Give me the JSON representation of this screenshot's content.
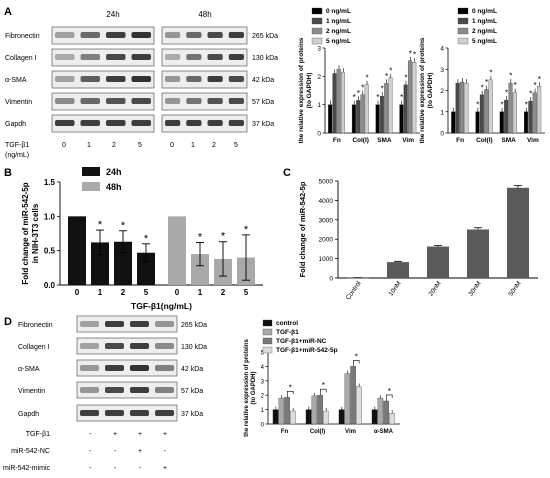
{
  "panels": {
    "a": "A",
    "b": "B",
    "c": "C",
    "d": "D"
  },
  "blot_a": {
    "proteins": [
      "Fibronectin",
      "Collagen I",
      "α-SMA",
      "Vimentin",
      "Gapdh"
    ],
    "sizes": [
      "265 kDa",
      "130 kDa",
      "42 kDa",
      "57 kDa",
      "37 kDa"
    ],
    "time_labels": [
      "24h",
      "48h"
    ],
    "dose_label": "TGF-β1",
    "dose_unit": "(ng/mL)",
    "doses": [
      "0",
      "1",
      "2",
      "5",
      "0",
      "1",
      "2",
      "5"
    ]
  },
  "blot_d": {
    "proteins": [
      "Fibronectin",
      "Collagen I",
      "α-SMA",
      "Vimentin",
      "Gapdh"
    ],
    "sizes": [
      "265 kDa",
      "130 kDa",
      "42 kDa",
      "57 kDa",
      "37 kDa"
    ],
    "rows": [
      {
        "label": "TGF-β1",
        "signs": [
          "-",
          "+",
          "+",
          "+"
        ]
      },
      {
        "label": "miR-542-NC",
        "signs": [
          "-",
          "-",
          "+",
          "-"
        ]
      },
      {
        "label": "miR-542-mimic",
        "signs": [
          "-",
          "-",
          "-",
          "+"
        ]
      }
    ]
  },
  "colors": {
    "dose0": "#000000",
    "dose1": "#4a4a4a",
    "dose2": "#8c8c8c",
    "dose5": "#cfcfcf",
    "black": "#111111",
    "gray": "#a9a9a9",
    "darkbar": "#5a5a5a"
  },
  "chart_data": [
    {
      "id": "a1",
      "type": "bar",
      "categories": [
        "Fn",
        "Col(I)",
        "SMA",
        "Vim"
      ],
      "series": [
        {
          "name": "0 ng/mL",
          "values": [
            1.0,
            1.0,
            1.0,
            1.0
          ]
        },
        {
          "name": "1 ng/mL",
          "values": [
            2.1,
            1.15,
            1.3,
            1.7
          ]
        },
        {
          "name": "2 ng/mL",
          "values": [
            2.25,
            1.35,
            1.75,
            2.55
          ]
        },
        {
          "name": "5 ng/mL",
          "values": [
            2.15,
            1.7,
            1.95,
            2.5
          ]
        }
      ],
      "ylabel": "the relative expression of proteins\n(to GAPDH)",
      "yticks": [
        "0",
        "1",
        "2",
        "3"
      ],
      "ylim": [
        0,
        3
      ],
      "stars": [
        [
          "",
          "*",
          "*",
          "*"
        ],
        [
          "",
          "*",
          "*",
          "*"
        ],
        [
          "",
          "*",
          "*",
          "*"
        ],
        [
          "",
          "*",
          "*",
          "*"
        ]
      ]
    },
    {
      "id": "a2",
      "type": "bar",
      "categories": [
        "Fn",
        "Col(I)",
        "SMA",
        "Vim"
      ],
      "series": [
        {
          "name": "0 ng/mL",
          "values": [
            1.0,
            1.0,
            1.0,
            1.0
          ]
        },
        {
          "name": "1 ng/mL",
          "values": [
            2.35,
            1.8,
            1.55,
            1.5
          ]
        },
        {
          "name": "2 ng/mL",
          "values": [
            2.4,
            2.05,
            2.35,
            1.9
          ]
        },
        {
          "name": "5 ng/mL",
          "values": [
            2.35,
            2.5,
            1.9,
            2.2
          ]
        }
      ],
      "ylabel": "the relative expression of proteins\n(to GAPDH)",
      "yticks": [
        "0",
        "1",
        "2",
        "3",
        "4"
      ],
      "ylim": [
        0,
        4
      ],
      "stars": [
        [
          "",
          "*",
          "*",
          "*"
        ],
        [
          "",
          "*",
          "*",
          "*"
        ],
        [
          "",
          "*",
          "*",
          "*"
        ],
        [
          "",
          "*",
          "*",
          "*"
        ]
      ]
    },
    {
      "id": "b",
      "type": "bar",
      "groups": [
        {
          "name": "24h",
          "x": [
            "0",
            "1",
            "2",
            "5"
          ],
          "values": [
            1.0,
            0.62,
            0.63,
            0.47
          ],
          "errors": [
            0,
            0.18,
            0.16,
            0.13
          ],
          "stars": [
            "",
            "*",
            "*",
            "*"
          ]
        },
        {
          "name": "48h",
          "x": [
            "0",
            "1",
            "2",
            "5"
          ],
          "values": [
            1.0,
            0.45,
            0.38,
            0.4
          ],
          "errors": [
            0,
            0.17,
            0.25,
            0.33
          ],
          "stars": [
            "",
            "*",
            "*",
            "*"
          ]
        }
      ],
      "ylabel": "Fold change of miR-542-5p\nin NIH-3T3 cells",
      "xlabel": "TGF-β1(ng/mL)",
      "yticks": [
        "0.0",
        "0.5",
        "1.0",
        "1.5"
      ],
      "ylim": [
        0,
        1.5
      ]
    },
    {
      "id": "c",
      "type": "bar",
      "categories": [
        "Control",
        "10nM",
        "20nM",
        "30nM",
        "50nM"
      ],
      "values": [
        10,
        820,
        1620,
        2500,
        4650
      ],
      "errors": [
        5,
        40,
        50,
        90,
        110
      ],
      "ylabel": "Fold change of miR-542-5p",
      "yticks": [
        "0",
        "1000",
        "2000",
        "3000",
        "4000",
        "5000"
      ],
      "ylim": [
        0,
        5000
      ]
    },
    {
      "id": "d",
      "type": "bar",
      "categories": [
        "Fn",
        "Col(I)",
        "Vim",
        "α-SMA"
      ],
      "series": [
        {
          "name": "control",
          "values": [
            1.0,
            1.0,
            1.0,
            1.0
          ]
        },
        {
          "name": "TGF-β1",
          "values": [
            1.8,
            1.95,
            3.5,
            1.8
          ]
        },
        {
          "name": "TGF-β1+miR-NC",
          "values": [
            1.85,
            2.0,
            4.0,
            1.6
          ]
        },
        {
          "name": "TGF-β1+miR-542-5p",
          "values": [
            0.9,
            0.9,
            2.6,
            0.75
          ]
        }
      ],
      "ylabel": "the relative expression of proteins\n(to GAPDH)",
      "yticks": [
        "0",
        "1",
        "2",
        "3",
        "4",
        "5"
      ],
      "ylim": [
        0,
        5
      ]
    }
  ]
}
